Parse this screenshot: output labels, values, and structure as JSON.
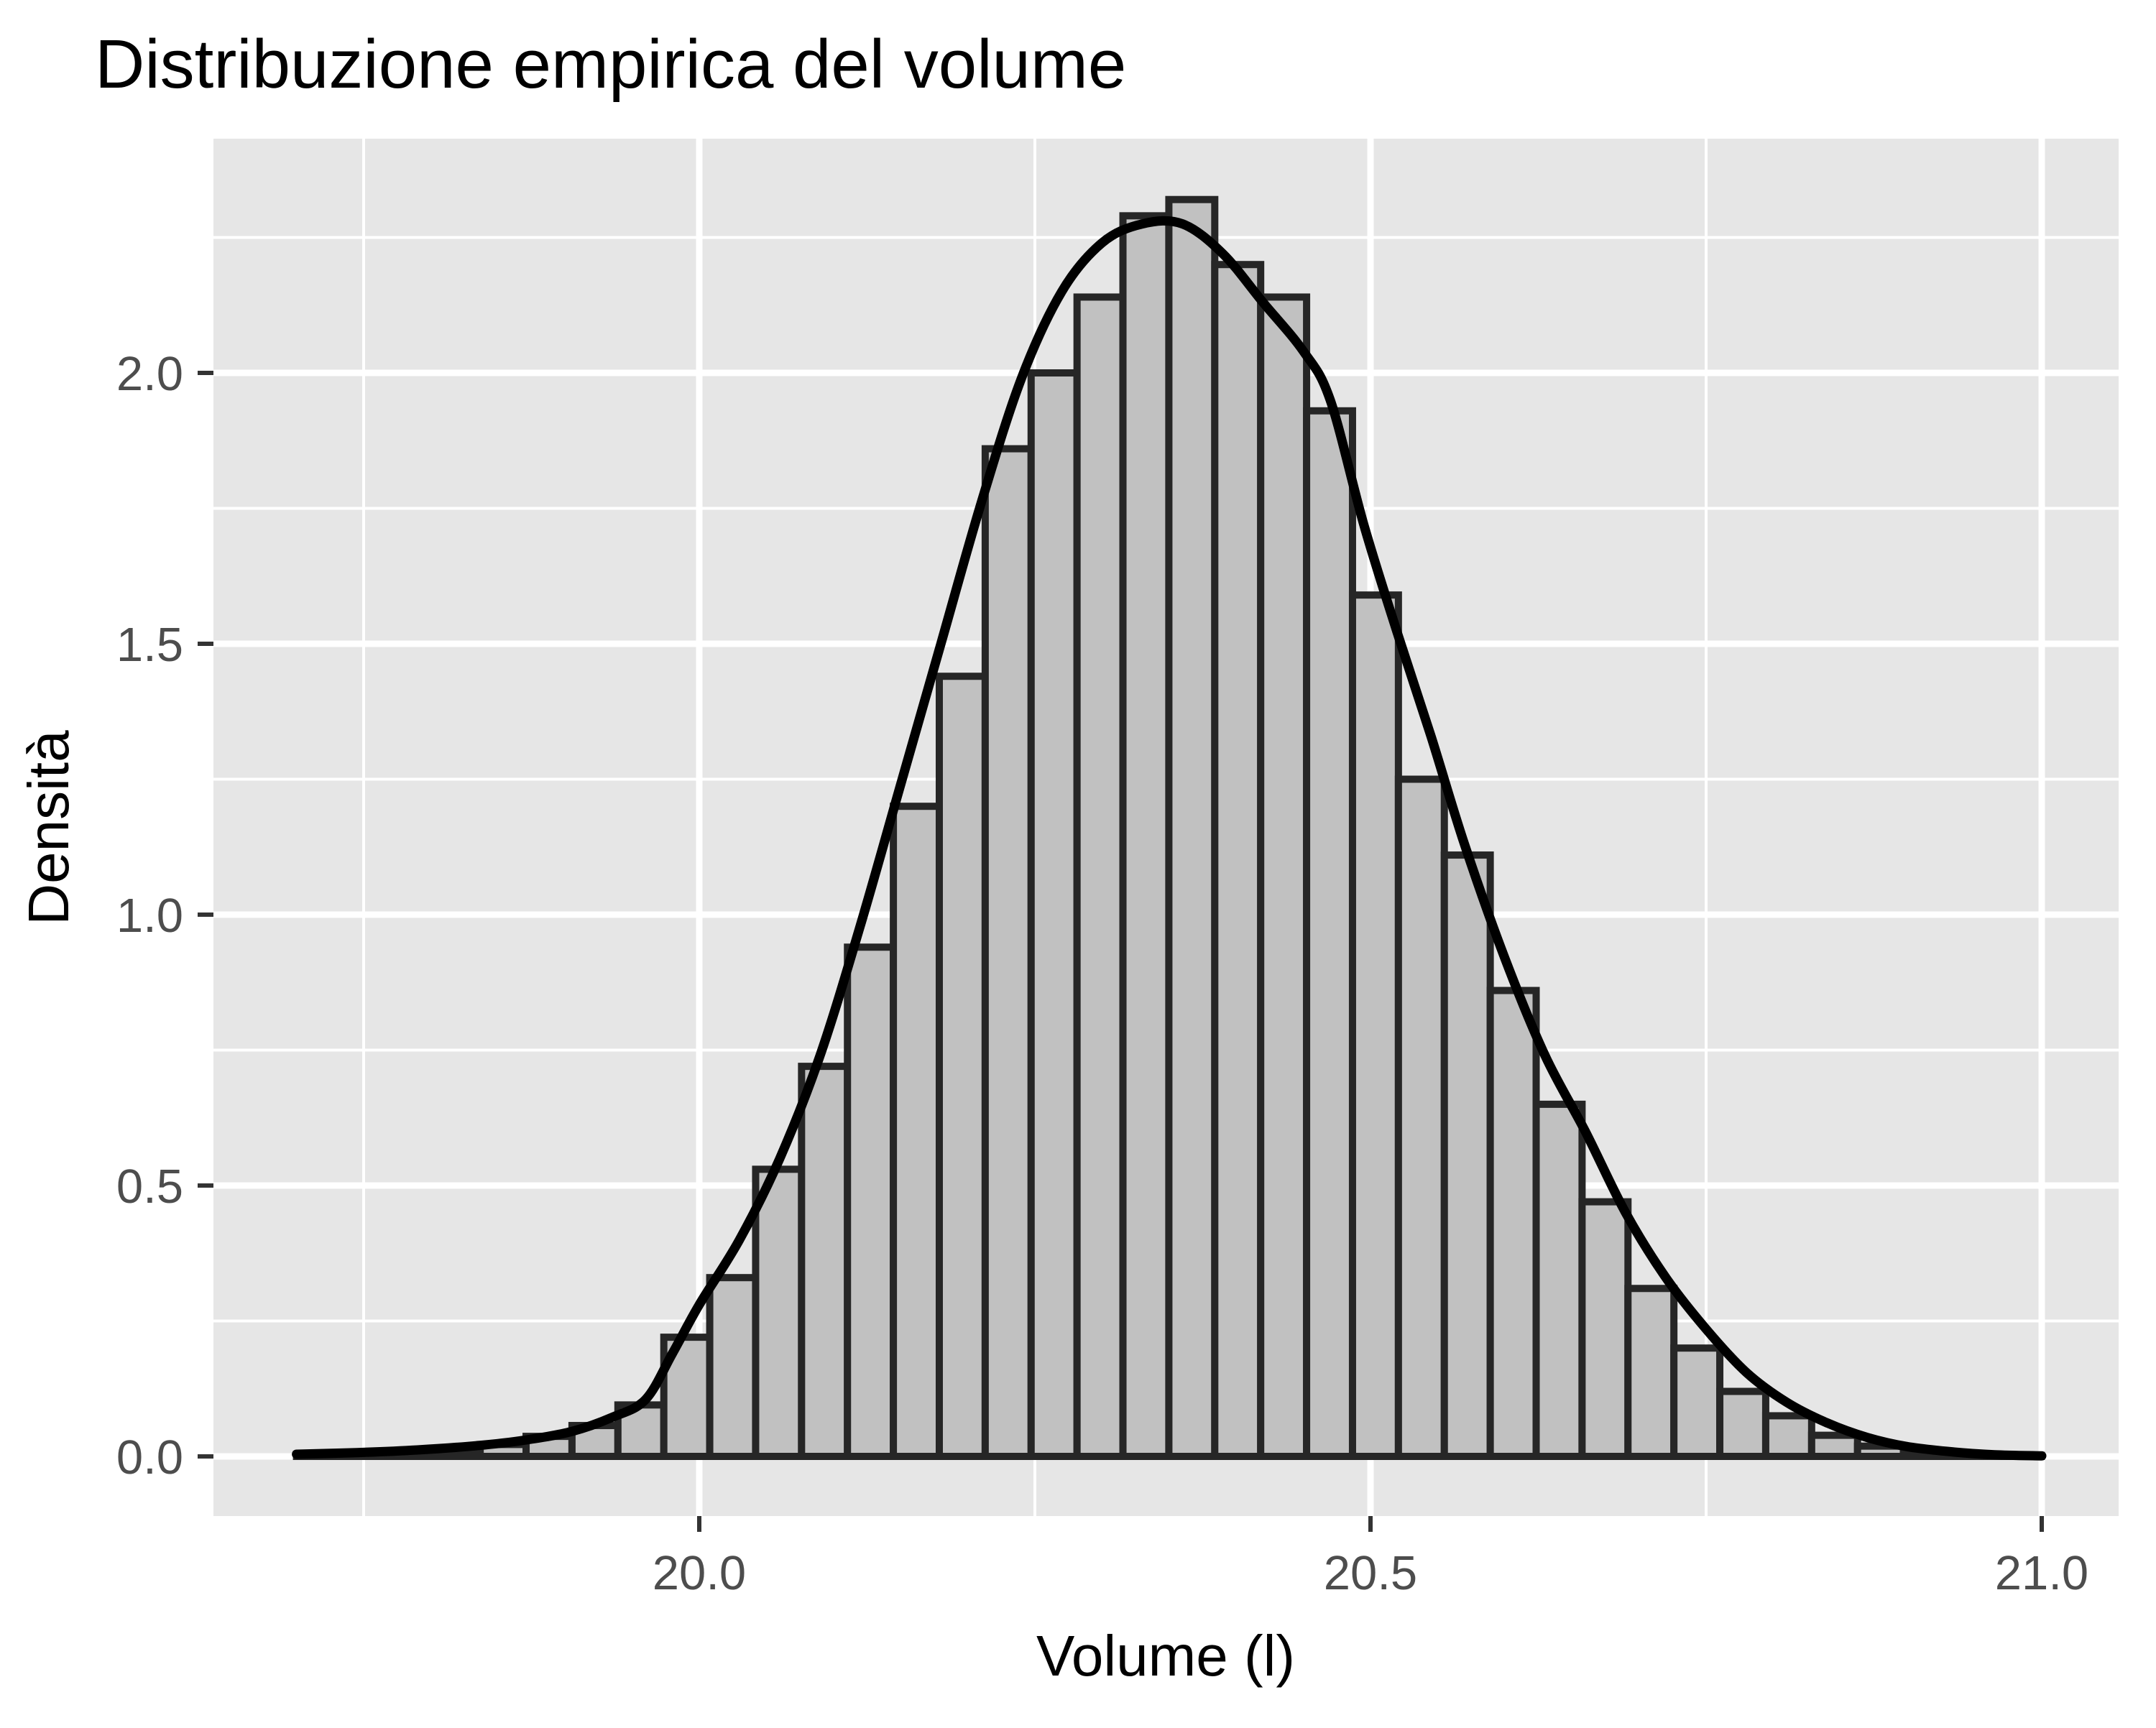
{
  "title": "Distribuzione empirica del volume",
  "chart_data": {
    "type": "bar",
    "subtype": "histogram_with_density",
    "title": "Distribuzione empirica del volume",
    "xlabel": "Volume (l)",
    "ylabel": "Densità",
    "xlim": [
      19.638,
      21.057
    ],
    "ylim": [
      -0.11,
      2.43
    ],
    "grid": "on",
    "legend": "none",
    "x_major_ticks": [
      {
        "value": 20.0,
        "label": "20.0"
      },
      {
        "value": 20.5,
        "label": "20.5"
      },
      {
        "value": 21.0,
        "label": "21.0"
      }
    ],
    "x_minor_ticks": [
      19.75,
      20.25,
      20.75
    ],
    "y_major_ticks": [
      {
        "value": 0.0,
        "label": "0.0"
      },
      {
        "value": 0.5,
        "label": "0.5"
      },
      {
        "value": 1.0,
        "label": "1.0"
      },
      {
        "value": 1.5,
        "label": "1.5"
      },
      {
        "value": 2.0,
        "label": "2.0"
      }
    ],
    "y_minor_ticks": [
      0.25,
      0.75,
      1.25,
      1.75,
      2.25
    ],
    "histogram": {
      "bin_start": 19.7,
      "binwidth": 0.0342,
      "densities": [
        0.004,
        0.006,
        0.01,
        0.013,
        0.022,
        0.037,
        0.057,
        0.095,
        0.22,
        0.33,
        0.53,
        0.72,
        0.94,
        1.2,
        1.44,
        1.86,
        2.0,
        2.14,
        2.29,
        2.32,
        2.2,
        2.14,
        1.93,
        1.59,
        1.25,
        1.11,
        0.86,
        0.65,
        0.47,
        0.31,
        0.2,
        0.12,
        0.075,
        0.039,
        0.019,
        0.009,
        0.004,
        0.002
      ]
    },
    "density_curve": [
      [
        19.7,
        0.004
      ],
      [
        19.745,
        0.007
      ],
      [
        19.79,
        0.012
      ],
      [
        19.835,
        0.02
      ],
      [
        19.87,
        0.03
      ],
      [
        19.905,
        0.046
      ],
      [
        19.935,
        0.072
      ],
      [
        19.96,
        0.105
      ],
      [
        19.98,
        0.19
      ],
      [
        20.0,
        0.28
      ],
      [
        20.03,
        0.4
      ],
      [
        20.06,
        0.55
      ],
      [
        20.09,
        0.74
      ],
      [
        20.12,
        0.98
      ],
      [
        20.15,
        1.24
      ],
      [
        20.18,
        1.5
      ],
      [
        20.21,
        1.76
      ],
      [
        20.24,
        1.99
      ],
      [
        20.27,
        2.15
      ],
      [
        20.3,
        2.24
      ],
      [
        20.33,
        2.275
      ],
      [
        20.36,
        2.275
      ],
      [
        20.39,
        2.22
      ],
      [
        20.42,
        2.13
      ],
      [
        20.45,
        2.04
      ],
      [
        20.47,
        1.95
      ],
      [
        20.495,
        1.72
      ],
      [
        20.52,
        1.52
      ],
      [
        20.545,
        1.33
      ],
      [
        20.57,
        1.13
      ],
      [
        20.6,
        0.92
      ],
      [
        20.63,
        0.74
      ],
      [
        20.66,
        0.6
      ],
      [
        20.69,
        0.45
      ],
      [
        20.72,
        0.33
      ],
      [
        20.75,
        0.235
      ],
      [
        20.78,
        0.155
      ],
      [
        20.81,
        0.1
      ],
      [
        20.84,
        0.062
      ],
      [
        20.87,
        0.035
      ],
      [
        20.9,
        0.018
      ],
      [
        20.935,
        0.008
      ],
      [
        20.965,
        0.003
      ],
      [
        21.0,
        0.001
      ]
    ],
    "colors": {
      "panel_background": "#E6E6E6",
      "gridline": "#FFFFFF",
      "bar_fill": "#C1C1C1",
      "bar_outline": "#262626",
      "density_line": "#000000",
      "tick_mark": "#333333",
      "tick_label": "#4D4D4D",
      "text": "#000000"
    }
  }
}
